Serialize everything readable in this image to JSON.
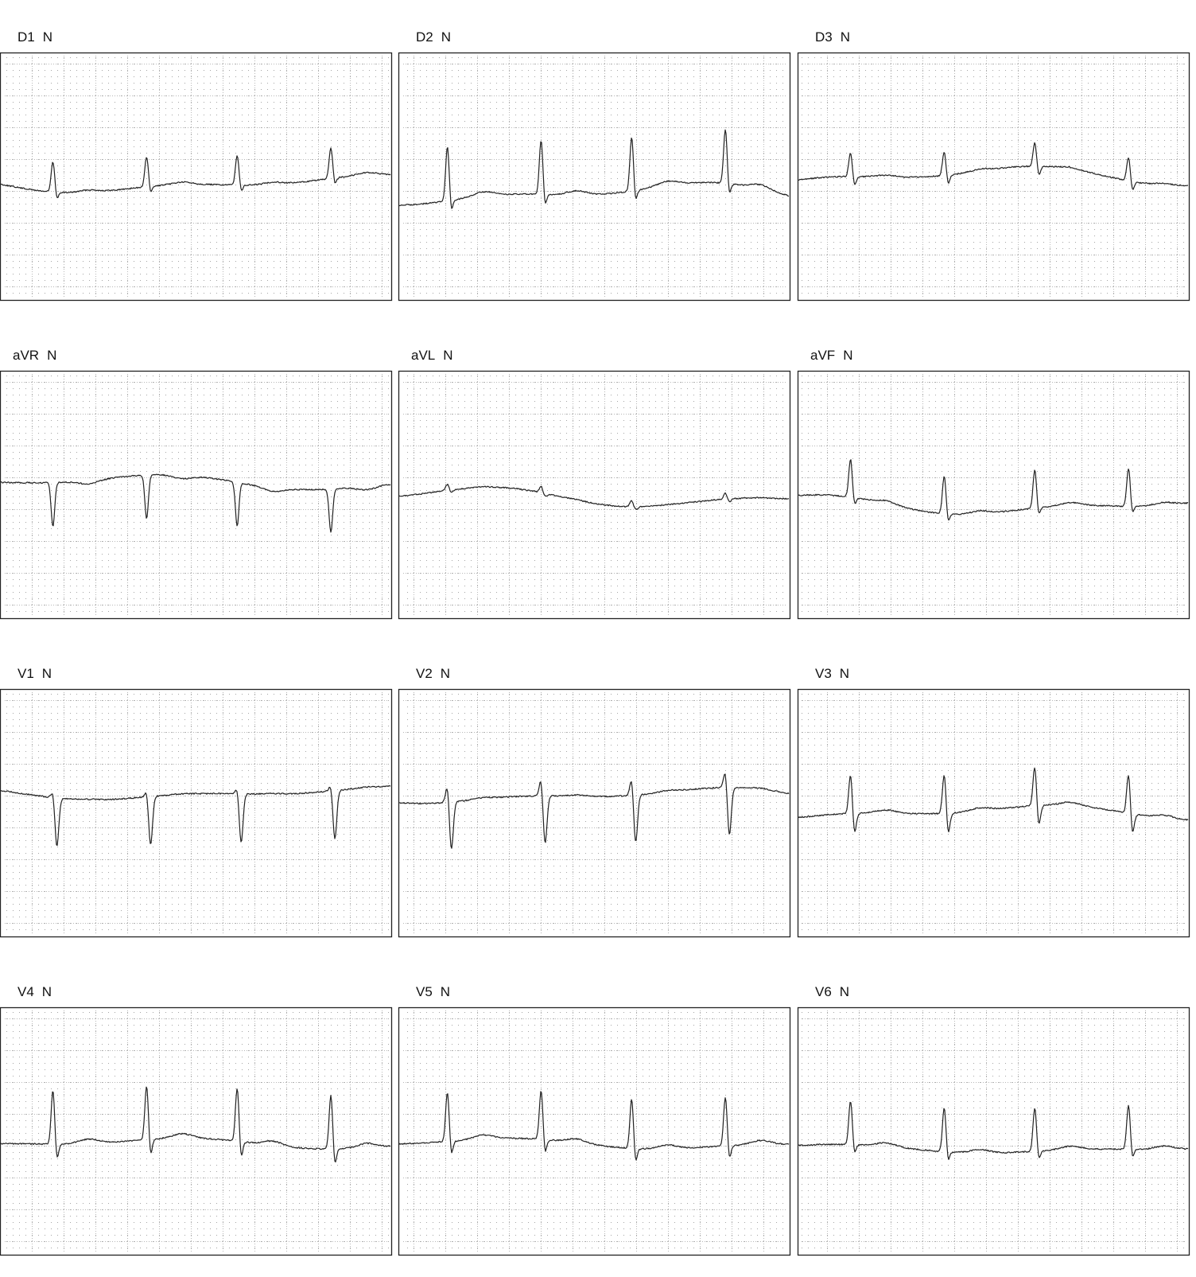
{
  "leads": [
    {
      "name": "D1",
      "status": "N"
    },
    {
      "name": "D2",
      "status": "N"
    },
    {
      "name": "D3",
      "status": "N"
    },
    {
      "name": "aVR",
      "status": "N"
    },
    {
      "name": "aVL",
      "status": "N"
    },
    {
      "name": "aVF",
      "status": "N"
    },
    {
      "name": "V1",
      "status": "N"
    },
    {
      "name": "V2",
      "status": "N"
    },
    {
      "name": "V3",
      "status": "N"
    },
    {
      "name": "V4",
      "status": "N"
    },
    {
      "name": "V5",
      "status": "N"
    },
    {
      "name": "V6",
      "status": "N"
    }
  ]
}
